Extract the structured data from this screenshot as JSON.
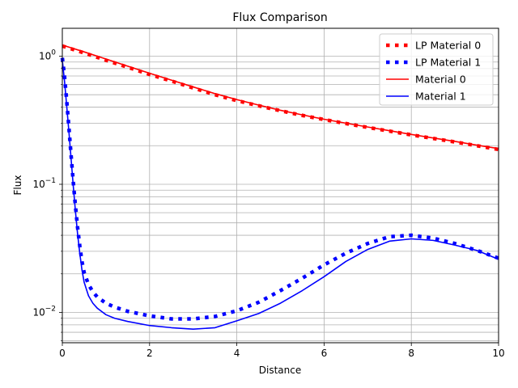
{
  "chart_data": {
    "type": "line",
    "title": "Flux Comparison",
    "xlabel": "Distance",
    "ylabel": "Flux",
    "xlim": [
      0,
      10
    ],
    "ylim": [
      0.0058,
      1.65
    ],
    "yscale": "log",
    "grid": true,
    "legend_position": "top-right",
    "x_ticks": [
      0,
      2,
      4,
      6,
      8,
      10
    ],
    "x_tick_labels": [
      "0",
      "2",
      "4",
      "6",
      "8",
      "10"
    ],
    "y_major_ticks": [
      0.01,
      0.1,
      1
    ],
    "y_tick_labels": [
      "10−2",
      "10−1",
      "10⁰"
    ],
    "y_tick_base": "10",
    "y_tick_exponents": [
      "−2",
      "−1",
      "0"
    ],
    "series": [
      {
        "name": "LP Material 0",
        "color": "#ff0000",
        "style": "dotted",
        "x": [
          0,
          0.5,
          1,
          1.5,
          2,
          2.5,
          3,
          3.5,
          4,
          4.5,
          5,
          5.5,
          6,
          6.5,
          7,
          7.5,
          8,
          8.5,
          9,
          9.5,
          10
        ],
        "y": [
          1.2,
          1.06,
          0.93,
          0.82,
          0.72,
          0.64,
          0.565,
          0.5,
          0.45,
          0.41,
          0.375,
          0.345,
          0.32,
          0.298,
          0.278,
          0.26,
          0.243,
          0.228,
          0.214,
          0.2,
          0.187
        ]
      },
      {
        "name": "LP Material 1",
        "color": "#0000ff",
        "style": "dotted",
        "x": [
          0,
          0.05,
          0.1,
          0.15,
          0.2,
          0.25,
          0.3,
          0.35,
          0.4,
          0.45,
          0.5,
          0.6,
          0.7,
          0.8,
          1,
          1.2,
          1.5,
          2,
          2.5,
          3,
          3.5,
          4,
          4.5,
          5,
          5.5,
          6,
          6.5,
          7,
          7.5,
          8,
          8.5,
          9,
          9.5,
          10
        ],
        "y": [
          0.97,
          0.7,
          0.45,
          0.28,
          0.17,
          0.105,
          0.068,
          0.046,
          0.033,
          0.025,
          0.0205,
          0.0165,
          0.0145,
          0.0132,
          0.0118,
          0.011,
          0.0102,
          0.0094,
          0.0089,
          0.0089,
          0.0093,
          0.0103,
          0.012,
          0.0148,
          0.0185,
          0.0235,
          0.029,
          0.0345,
          0.039,
          0.04,
          0.038,
          0.0345,
          0.0305,
          0.0265
        ]
      },
      {
        "name": "Material 0",
        "color": "#ff0000",
        "style": "solid",
        "x": [
          0,
          0.5,
          1,
          1.5,
          2,
          2.5,
          3,
          3.5,
          4,
          4.5,
          5,
          5.5,
          6,
          6.5,
          7,
          7.5,
          8,
          8.5,
          9,
          9.5,
          10
        ],
        "y": [
          1.22,
          1.08,
          0.95,
          0.835,
          0.735,
          0.65,
          0.575,
          0.51,
          0.458,
          0.415,
          0.378,
          0.348,
          0.322,
          0.3,
          0.28,
          0.262,
          0.245,
          0.23,
          0.216,
          0.202,
          0.19
        ]
      },
      {
        "name": "Material 1",
        "color": "#0000ff",
        "style": "solid",
        "x": [
          0,
          0.05,
          0.1,
          0.15,
          0.2,
          0.25,
          0.3,
          0.35,
          0.4,
          0.45,
          0.5,
          0.6,
          0.7,
          0.8,
          1,
          1.2,
          1.5,
          2,
          2.5,
          3,
          3.5,
          4,
          4.5,
          5,
          5.5,
          6,
          6.5,
          7,
          7.5,
          8,
          8.5,
          9,
          9.5,
          10
        ],
        "y": [
          0.93,
          0.64,
          0.41,
          0.26,
          0.16,
          0.098,
          0.062,
          0.041,
          0.029,
          0.0215,
          0.0172,
          0.0135,
          0.0118,
          0.0108,
          0.0096,
          0.009,
          0.0085,
          0.0079,
          0.0076,
          0.0074,
          0.0076,
          0.0086,
          0.0098,
          0.0118,
          0.0148,
          0.019,
          0.025,
          0.031,
          0.036,
          0.0375,
          0.0365,
          0.0335,
          0.0305,
          0.026
        ]
      }
    ]
  }
}
